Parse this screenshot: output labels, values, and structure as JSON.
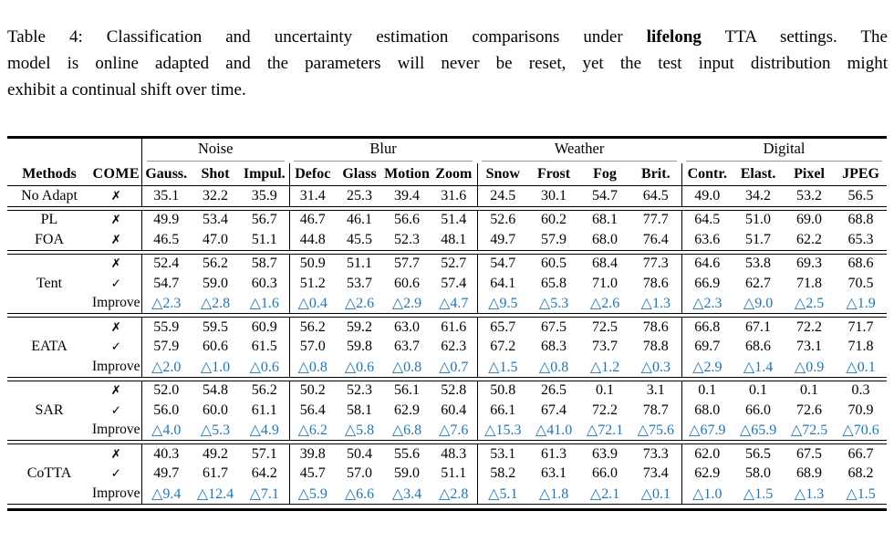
{
  "caption": {
    "line1_pre": "Table 4: Classification and uncertainty estimation comparisons under ",
    "line1_bold": "lifelong",
    "line1_post": " TTA settings. The",
    "line2": "model is online adapted and the parameters will never be reset, yet the test input distribution might",
    "line3": "exhibit a continual shift over time."
  },
  "table": {
    "colors": {
      "improve_blue": "#1f76b4",
      "rule_gray": "#969696"
    },
    "group_headers": [
      {
        "label": "Noise",
        "span": 3
      },
      {
        "label": "Blur",
        "span": 4
      },
      {
        "label": "Weather",
        "span": 4
      },
      {
        "label": "Digital",
        "span": 4
      }
    ],
    "col_headers": [
      "Methods",
      "COME",
      "Gauss.",
      "Shot",
      "Impul.",
      "Defoc",
      "Glass",
      "Motion",
      "Zoom",
      "Snow",
      "Frost",
      "Fog",
      "Brit.",
      "Contr.",
      "Elast.",
      "Pixel",
      "JPEG"
    ],
    "sections": [
      {
        "method": "No Adapt",
        "rows": [
          {
            "mark": "✗",
            "values": [
              "35.1",
              "32.2",
              "35.9",
              "31.4",
              "25.3",
              "39.4",
              "31.6",
              "24.5",
              "30.1",
              "54.7",
              "64.5",
              "49.0",
              "34.2",
              "53.2",
              "56.5"
            ]
          }
        ]
      },
      {
        "rows": [
          {
            "method": "PL",
            "mark": "✗",
            "values": [
              "49.9",
              "53.4",
              "56.7",
              "46.7",
              "46.1",
              "56.6",
              "51.4",
              "52.6",
              "60.2",
              "68.1",
              "77.7",
              "64.5",
              "51.0",
              "69.0",
              "68.8"
            ]
          },
          {
            "method": "FOA",
            "mark": "✗",
            "values": [
              "46.5",
              "47.0",
              "51.1",
              "44.8",
              "45.5",
              "52.3",
              "48.1",
              "49.7",
              "57.9",
              "68.0",
              "76.4",
              "63.6",
              "51.7",
              "62.2",
              "65.3"
            ]
          }
        ]
      },
      {
        "method": "Tent",
        "rows": [
          {
            "mark": "✗",
            "values": [
              "52.4",
              "56.2",
              "58.7",
              "50.9",
              "51.1",
              "57.7",
              "52.7",
              "54.7",
              "60.5",
              "68.4",
              "77.3",
              "64.6",
              "53.8",
              "69.3",
              "68.6"
            ]
          },
          {
            "mark": "✓",
            "values": [
              "54.7",
              "59.0",
              "60.3",
              "51.2",
              "53.7",
              "60.6",
              "57.4",
              "64.1",
              "65.8",
              "71.0",
              "78.6",
              "66.9",
              "62.7",
              "71.8",
              "70.5"
            ]
          },
          {
            "label": "Improve",
            "values": [
              "△2.3",
              "△2.8",
              "△1.6",
              "△0.4",
              "△2.6",
              "△2.9",
              "△4.7",
              "△9.5",
              "△5.3",
              "△2.6",
              "△1.3",
              "△2.3",
              "△9.0",
              "△2.5",
              "△1.9"
            ]
          }
        ]
      },
      {
        "method": "EATA",
        "rows": [
          {
            "mark": "✗",
            "values": [
              "55.9",
              "59.5",
              "60.9",
              "56.2",
              "59.2",
              "63.0",
              "61.6",
              "65.7",
              "67.5",
              "72.5",
              "78.6",
              "66.8",
              "67.1",
              "72.2",
              "71.7"
            ]
          },
          {
            "mark": "✓",
            "values": [
              "57.9",
              "60.6",
              "61.5",
              "57.0",
              "59.8",
              "63.7",
              "62.3",
              "67.2",
              "68.3",
              "73.7",
              "78.8",
              "69.7",
              "68.6",
              "73.1",
              "71.8"
            ]
          },
          {
            "label": "Improve",
            "values": [
              "△2.0",
              "△1.0",
              "△0.6",
              "△0.8",
              "△0.6",
              "△0.8",
              "△0.7",
              "△1.5",
              "△0.8",
              "△1.2",
              "△0.3",
              "△2.9",
              "△1.4",
              "△0.9",
              "△0.1"
            ]
          }
        ]
      },
      {
        "method": "SAR",
        "rows": [
          {
            "mark": "✗",
            "values": [
              "52.0",
              "54.8",
              "56.2",
              "50.2",
              "52.3",
              "56.1",
              "52.8",
              "50.8",
              "26.5",
              "0.1",
              "3.1",
              "0.1",
              "0.1",
              "0.1",
              "0.3"
            ]
          },
          {
            "mark": "✓",
            "values": [
              "56.0",
              "60.0",
              "61.1",
              "56.4",
              "58.1",
              "62.9",
              "60.4",
              "66.1",
              "67.4",
              "72.2",
              "78.7",
              "68.0",
              "66.0",
              "72.6",
              "70.9"
            ]
          },
          {
            "label": "Improve",
            "values": [
              "△4.0",
              "△5.3",
              "△4.9",
              "△6.2",
              "△5.8",
              "△6.8",
              "△7.6",
              "△15.3",
              "△41.0",
              "△72.1",
              "△75.6",
              "△67.9",
              "△65.9",
              "△72.5",
              "△70.6"
            ]
          }
        ]
      },
      {
        "method": "CoTTA",
        "rows": [
          {
            "mark": "✗",
            "values": [
              "40.3",
              "49.2",
              "57.1",
              "39.8",
              "50.4",
              "55.6",
              "48.3",
              "53.1",
              "61.3",
              "63.9",
              "73.3",
              "62.0",
              "56.5",
              "67.5",
              "66.7"
            ]
          },
          {
            "mark": "✓",
            "values": [
              "49.7",
              "61.7",
              "64.2",
              "45.7",
              "57.0",
              "59.0",
              "51.1",
              "58.2",
              "63.1",
              "66.0",
              "73.4",
              "62.9",
              "58.0",
              "68.9",
              "68.2"
            ]
          },
          {
            "label": "Improve",
            "values": [
              "△9.4",
              "△12.4",
              "△7.1",
              "△5.9",
              "△6.6",
              "△3.4",
              "△2.8",
              "△5.1",
              "△1.8",
              "△2.1",
              "△0.1",
              "△1.0",
              "△1.5",
              "△1.3",
              "△1.5"
            ]
          }
        ]
      }
    ]
  }
}
